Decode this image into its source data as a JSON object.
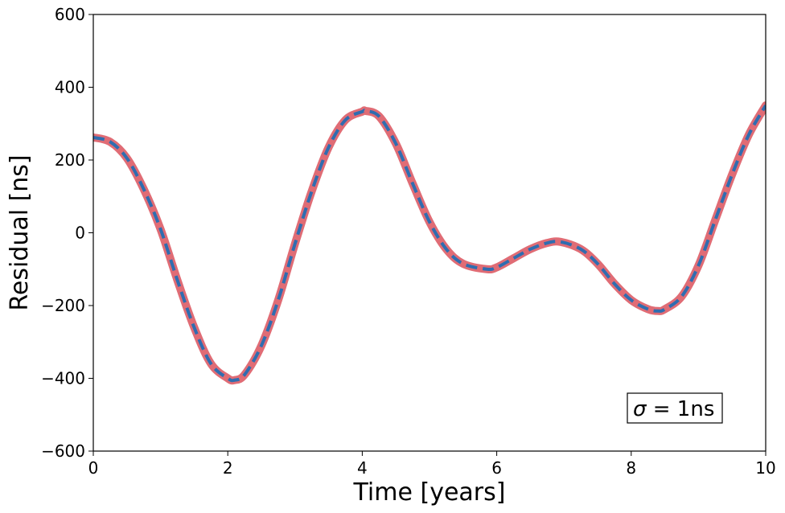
{
  "chart_data": {
    "type": "line",
    "xlabel": "Time [years]",
    "ylabel": "Residual [ns]",
    "xlim": [
      0,
      10
    ],
    "ylim": [
      -600,
      600
    ],
    "x_ticks": [
      0,
      2,
      4,
      6,
      8,
      10
    ],
    "y_ticks": [
      -600,
      -400,
      -200,
      0,
      200,
      400,
      600
    ],
    "x_tick_labels": [
      "0",
      "2",
      "4",
      "6",
      "8",
      "10"
    ],
    "y_tick_labels": [
      "−600",
      "−400",
      "−200",
      "0",
      "200",
      "400",
      "600"
    ],
    "grid": false,
    "annotation": {
      "symbol": "σ",
      "text": " = 1ns"
    },
    "series": [
      {
        "style": "solid-thick",
        "color": "#e06c75",
        "x": [
          0,
          0.25,
          0.5,
          0.75,
          1.0,
          1.25,
          1.5,
          1.75,
          2.0,
          2.1,
          2.25,
          2.5,
          2.75,
          3.0,
          3.25,
          3.5,
          3.75,
          4.0,
          4.05,
          4.25,
          4.5,
          4.75,
          5.0,
          5.25,
          5.5,
          5.85,
          6.0,
          6.25,
          6.5,
          6.75,
          6.95,
          7.25,
          7.5,
          7.75,
          8.0,
          8.25,
          8.4,
          8.5,
          8.75,
          9.0,
          9.25,
          9.5,
          9.75,
          10.0
        ],
        "y": [
          262,
          250,
          205,
          120,
          10,
          -130,
          -260,
          -360,
          -400,
          -405,
          -390,
          -310,
          -185,
          -30,
          115,
          235,
          310,
          333,
          335,
          320,
          245,
          135,
          30,
          -45,
          -85,
          -100,
          -95,
          -70,
          -45,
          -28,
          -25,
          -45,
          -85,
          -140,
          -185,
          -210,
          -215,
          -210,
          -175,
          -90,
          35,
          160,
          270,
          350
        ]
      },
      {
        "style": "dashed",
        "color": "#2f6db0",
        "x": [
          0,
          0.25,
          0.5,
          0.75,
          1.0,
          1.25,
          1.5,
          1.75,
          2.0,
          2.1,
          2.25,
          2.5,
          2.75,
          3.0,
          3.25,
          3.5,
          3.75,
          4.0,
          4.05,
          4.25,
          4.5,
          4.75,
          5.0,
          5.25,
          5.5,
          5.85,
          6.0,
          6.25,
          6.5,
          6.75,
          6.95,
          7.25,
          7.5,
          7.75,
          8.0,
          8.25,
          8.4,
          8.5,
          8.75,
          9.0,
          9.25,
          9.5,
          9.75,
          10.0
        ],
        "y": [
          262,
          250,
          205,
          120,
          10,
          -130,
          -260,
          -360,
          -400,
          -405,
          -390,
          -310,
          -185,
          -30,
          115,
          235,
          310,
          333,
          335,
          320,
          245,
          135,
          30,
          -45,
          -85,
          -100,
          -95,
          -70,
          -45,
          -28,
          -25,
          -45,
          -85,
          -140,
          -185,
          -210,
          -215,
          -210,
          -175,
          -90,
          35,
          160,
          270,
          350
        ]
      }
    ]
  }
}
